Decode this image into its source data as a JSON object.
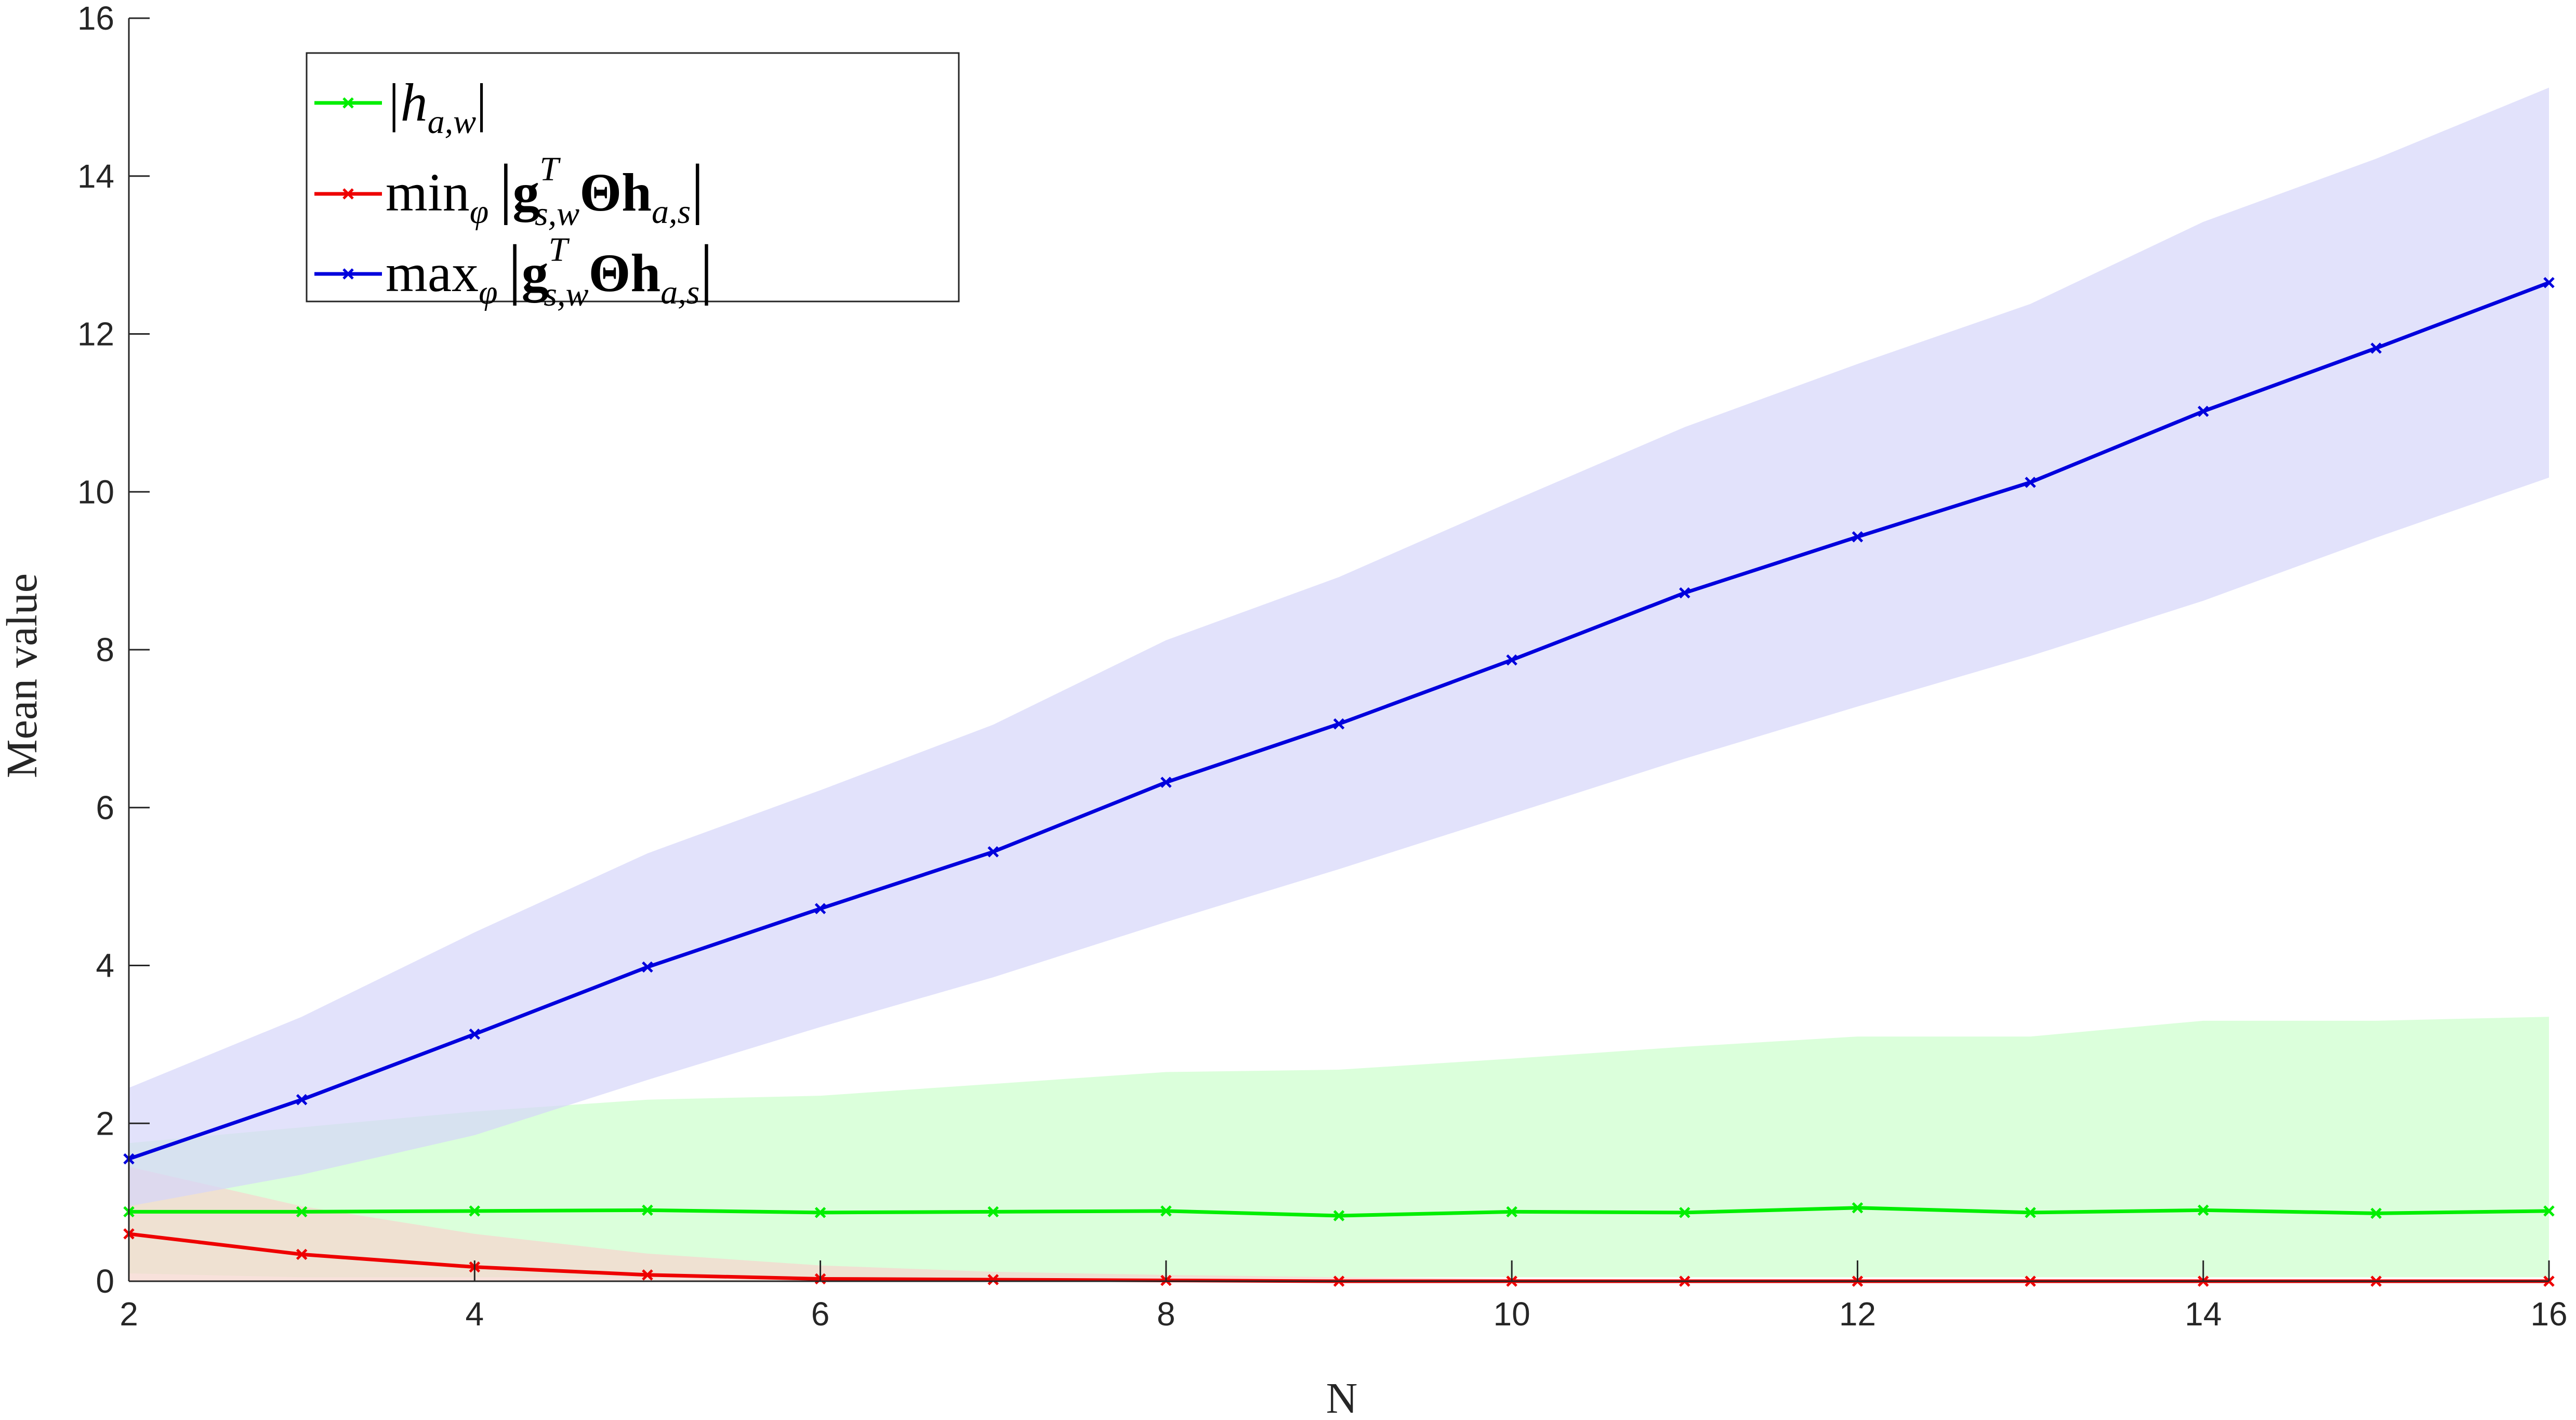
{
  "chart_data": {
    "type": "line",
    "xlabel": "N",
    "ylabel": "Mean value",
    "xlim": [
      2,
      16
    ],
    "ylim": [
      0,
      16
    ],
    "xticks": [
      2,
      4,
      6,
      8,
      10,
      12,
      14,
      16
    ],
    "yticks": [
      0,
      2,
      4,
      6,
      8,
      10,
      12,
      14,
      16
    ],
    "grid": false,
    "legend_position": "top-left",
    "x": [
      2,
      3,
      4,
      5,
      6,
      7,
      8,
      9,
      10,
      11,
      12,
      13,
      14,
      15,
      16
    ],
    "series": [
      {
        "name": "|h_{a,w}|",
        "legend_main": "|h",
        "legend_sub": "a,w",
        "legend_close": "|",
        "color": "#00ee00",
        "band_color": "#ccffcc",
        "values": [
          0.88,
          0.88,
          0.89,
          0.9,
          0.87,
          0.88,
          0.89,
          0.83,
          0.88,
          0.87,
          0.93,
          0.87,
          0.9,
          0.86,
          0.89
        ],
        "band_upper": [
          1.75,
          1.95,
          2.15,
          2.3,
          2.35,
          2.5,
          2.65,
          2.68,
          2.82,
          2.97,
          3.1,
          3.1,
          3.3,
          3.3,
          3.35
        ],
        "band_lower": [
          0.1,
          0.05,
          0.05,
          0.05,
          0.05,
          0.05,
          0.05,
          0.05,
          0.05,
          0.05,
          0.05,
          0.05,
          0.05,
          0.05,
          0.05
        ]
      },
      {
        "name": "min_φ |g^T_{s,w} Θ h_{a,s}|",
        "legend_op": "min",
        "legend_op_sub": "φ",
        "legend_g": "g",
        "legend_sup": "T",
        "legend_sub1": "s,w",
        "legend_theta": "Θh",
        "legend_sub2": "a,s",
        "color": "#ee0000",
        "band_color": "#f5d7cf",
        "values": [
          0.6,
          0.34,
          0.18,
          0.08,
          0.03,
          0.02,
          0.01,
          0.0,
          0.0,
          0.0,
          0.0,
          0.0,
          0.0,
          0.0,
          0.0
        ],
        "band_upper": [
          1.45,
          0.95,
          0.6,
          0.35,
          0.2,
          0.12,
          0.08,
          0.05,
          0.03,
          0.02,
          0.02,
          0.01,
          0.01,
          0.01,
          0.01
        ],
        "band_lower": [
          0.0,
          0.0,
          0.0,
          0.0,
          0.0,
          0.0,
          0.0,
          0.0,
          0.0,
          0.0,
          0.0,
          0.0,
          0.0,
          0.0,
          0.0
        ]
      },
      {
        "name": "max_φ |g^T_{s,w} Θ h_{a,s}|",
        "legend_op": "max",
        "legend_op_sub": "φ",
        "legend_g": "g",
        "legend_sup": "T",
        "legend_sub1": "s,w",
        "legend_theta": "Θh",
        "legend_sub2": "a,s",
        "color": "#0000dd",
        "band_color": "#d5d5fa",
        "values": [
          1.55,
          2.3,
          3.13,
          3.98,
          4.72,
          5.44,
          6.32,
          7.06,
          7.87,
          8.72,
          9.43,
          10.12,
          11.02,
          11.82,
          12.65
        ],
        "band_upper": [
          2.45,
          3.35,
          4.42,
          5.42,
          6.22,
          7.05,
          8.12,
          8.92,
          9.88,
          10.82,
          11.62,
          12.38,
          13.42,
          14.22,
          15.12
        ],
        "band_lower": [
          0.95,
          1.35,
          1.85,
          2.55,
          3.22,
          3.85,
          4.55,
          5.22,
          5.92,
          6.62,
          7.28,
          7.92,
          8.62,
          9.42,
          10.18
        ]
      }
    ]
  }
}
